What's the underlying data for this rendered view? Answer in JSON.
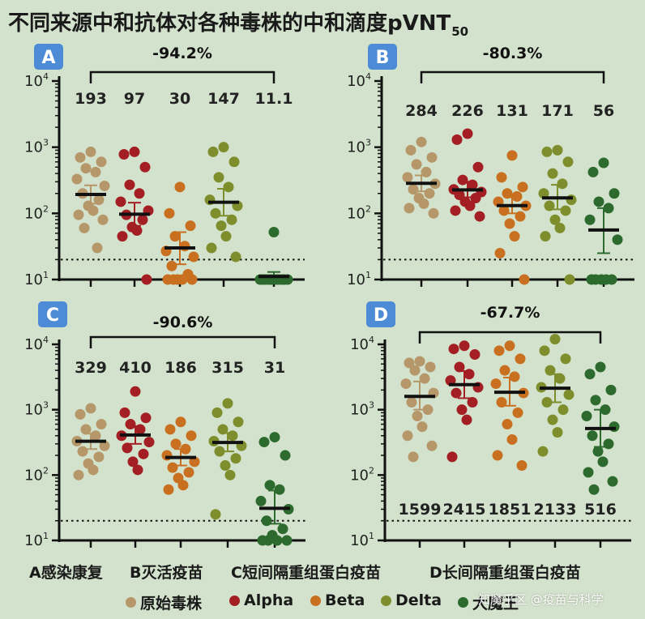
{
  "title": {
    "main": "不同来源中和抗体对各种毒株的中和滴度pVNT",
    "subscript": "50"
  },
  "group_labels": [
    "A感染康复",
    "B灭活疫苗",
    "C短间隔重组蛋白疫苗",
    "D长间隔重组蛋白疫苗"
  ],
  "legend": [
    {
      "name": "原始毒株",
      "color": "#b5976a"
    },
    {
      "name": "Alpha",
      "color": "#a31f24"
    },
    {
      "name": "Beta",
      "color": "#c8701f"
    },
    {
      "name": "Delta",
      "color": "#7e8e2c"
    },
    {
      "name": "大魔王",
      "color": "#2d6a2e"
    }
  ],
  "watermark": "知魔乎区 @疫苗与科学",
  "chart_data": [
    {
      "type": "scatter",
      "panel": "A",
      "y_scale": "log10",
      "ylim": [
        10,
        10000
      ],
      "y_ticks": [
        "10^1",
        "10^2",
        "10^3",
        "10^4"
      ],
      "detection_limit": 20,
      "reduction_label": "-94.2%",
      "categories": [
        "原始毒株",
        "Alpha",
        "Beta",
        "Delta",
        "大魔王"
      ],
      "gmt_labels": [
        "193",
        "97",
        "30",
        "147",
        "11.1"
      ],
      "gmt": [
        193,
        97,
        30,
        147,
        11.1
      ],
      "error_bars": [
        [
          140,
          265
        ],
        [
          65,
          145
        ],
        [
          17,
          52
        ],
        [
          92,
          235
        ],
        [
          10,
          13
        ]
      ],
      "points": [
        [
          850,
          700,
          600,
          480,
          420,
          330,
          260,
          200,
          160,
          130,
          110,
          95,
          80,
          60,
          30
        ],
        [
          850,
          780,
          500,
          270,
          200,
          150,
          110,
          95,
          80,
          62,
          55,
          45,
          10
        ],
        [
          250,
          100,
          65,
          45,
          32,
          27,
          22,
          16,
          12,
          10,
          10,
          10,
          10,
          10
        ],
        [
          1000,
          850,
          600,
          350,
          250,
          160,
          130,
          100,
          80,
          65,
          45,
          30,
          22
        ],
        [
          52,
          10,
          10,
          10,
          10,
          10,
          10,
          10,
          10,
          10,
          10,
          10
        ]
      ]
    },
    {
      "type": "scatter",
      "panel": "B",
      "y_scale": "log10",
      "ylim": [
        10,
        10000
      ],
      "y_ticks": [
        "10^1",
        "10^2",
        "10^3",
        "10^4"
      ],
      "detection_limit": 20,
      "reduction_label": "-80.3%",
      "categories": [
        "原始毒株",
        "Alpha",
        "Beta",
        "Delta",
        "大魔王"
      ],
      "gmt_labels": [
        "284",
        "226",
        "131",
        "171",
        "56"
      ],
      "gmt": [
        284,
        226,
        131,
        171,
        56
      ],
      "error_bars": [
        [
          215,
          375
        ],
        [
          175,
          300
        ],
        [
          100,
          175
        ],
        [
          115,
          270
        ],
        [
          25,
          120
        ]
      ],
      "points": [
        [
          1200,
          900,
          700,
          550,
          420,
          350,
          280,
          230,
          200,
          170,
          140,
          120,
          100
        ],
        [
          1600,
          1300,
          500,
          320,
          270,
          230,
          210,
          190,
          170,
          150,
          130,
          110,
          90
        ],
        [
          750,
          350,
          250,
          200,
          180,
          150,
          130,
          110,
          90,
          70,
          45,
          25,
          10
        ],
        [
          900,
          850,
          600,
          400,
          280,
          200,
          160,
          130,
          110,
          80,
          60,
          45,
          10
        ],
        [
          580,
          420,
          200,
          150,
          120,
          80,
          40,
          10,
          10,
          10,
          10,
          10
        ]
      ]
    },
    {
      "type": "scatter",
      "panel": "C",
      "y_scale": "log10",
      "ylim": [
        10,
        10000
      ],
      "y_ticks": [
        "10^1",
        "10^2",
        "10^3",
        "10^4"
      ],
      "detection_limit": 20,
      "reduction_label": "-90.6%",
      "categories": [
        "原始毒株",
        "Alpha",
        "Beta",
        "Delta",
        "大魔王"
      ],
      "gmt_labels": [
        "329",
        "410",
        "186",
        "315",
        "31"
      ],
      "gmt": [
        329,
        410,
        186,
        315,
        31
      ],
      "error_bars": [
        [
          250,
          430
        ],
        [
          300,
          560
        ],
        [
          140,
          250
        ],
        [
          230,
          440
        ],
        [
          18,
          58
        ]
      ],
      "points": [
        [
          1050,
          850,
          600,
          500,
          400,
          330,
          280,
          230,
          190,
          150,
          120,
          100
        ],
        [
          1900,
          900,
          750,
          600,
          500,
          400,
          320,
          260,
          210,
          160,
          120
        ],
        [
          650,
          500,
          400,
          300,
          250,
          200,
          160,
          130,
          110,
          90,
          70,
          60
        ],
        [
          1250,
          900,
          650,
          500,
          400,
          330,
          280,
          230,
          180,
          140,
          100,
          25
        ],
        [
          380,
          320,
          200,
          70,
          60,
          40,
          30,
          20,
          15,
          12,
          10,
          10,
          10,
          10
        ]
      ]
    },
    {
      "type": "scatter",
      "panel": "D",
      "y_scale": "log10",
      "ylim": [
        10,
        10000
      ],
      "y_ticks": [
        "10^1",
        "10^2",
        "10^3",
        "10^4"
      ],
      "detection_limit": 20,
      "reduction_label": "-67.7%",
      "categories": [
        "原始毒株",
        "Alpha",
        "Beta",
        "Delta",
        "大魔王"
      ],
      "gmt_labels": [
        "1599",
        "2415",
        "1851",
        "2133",
        "516"
      ],
      "gmt": [
        1599,
        2415,
        1851,
        2133,
        516
      ],
      "error_bars": [
        [
          1000,
          2700
        ],
        [
          1500,
          3900
        ],
        [
          1150,
          3100
        ],
        [
          1300,
          3500
        ],
        [
          270,
          1000
        ]
      ],
      "points": [
        [
          5500,
          5200,
          4500,
          4000,
          3000,
          2500,
          1800,
          1300,
          1000,
          800,
          550,
          400,
          280,
          190
        ],
        [
          9500,
          8500,
          7000,
          4500,
          3500,
          2800,
          2200,
          1800,
          1300,
          1000,
          700,
          190
        ],
        [
          9500,
          8000,
          6000,
          4000,
          3200,
          2500,
          1800,
          1300,
          900,
          600,
          350,
          200,
          140
        ],
        [
          12000,
          8000,
          6000,
          4000,
          3000,
          2200,
          1700,
          1300,
          1000,
          700,
          450,
          230
        ],
        [
          4500,
          3500,
          2000,
          1400,
          1000,
          800,
          550,
          400,
          300,
          230,
          160,
          110,
          80,
          60
        ]
      ]
    }
  ]
}
